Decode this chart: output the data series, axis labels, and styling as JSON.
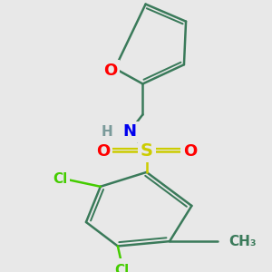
{
  "background_color": "#e8e8e8",
  "bond_color": "#3a7a5a",
  "bond_width": 1.8,
  "atom_colors": {
    "O": "#ff0000",
    "N": "#0000ee",
    "S": "#cccc00",
    "Cl": "#44cc00",
    "C": "#3a7a5a",
    "H": "#7a9a9a"
  },
  "font_size_main": 13,
  "font_size_small": 10
}
